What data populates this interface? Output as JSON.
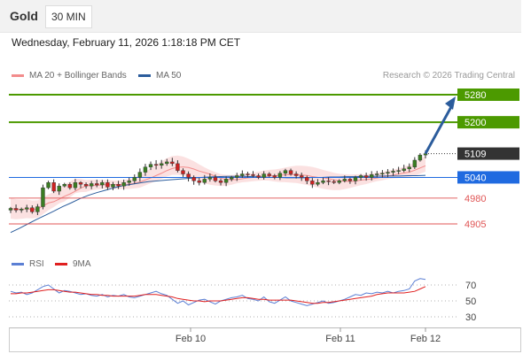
{
  "header": {
    "title": "Gold",
    "timeframe": "30 MIN"
  },
  "date": "Wednesday, February 11, 2026 1:18:18 PM CET",
  "copyright": "Research © 2026 Trading Central",
  "legend": [
    {
      "label": "MA 20 + Bollinger Bands",
      "color": "#f28c8c"
    },
    {
      "label": "MA 50",
      "color": "#2b5c9c"
    }
  ],
  "rsi_legend": [
    {
      "label": "RSI",
      "color": "#5b7fd4"
    },
    {
      "label": "9MA",
      "color": "#e02020"
    }
  ],
  "colors": {
    "resistance": "#4c9a00",
    "support": "#e05555",
    "pivot": "#1f6ae0",
    "price_box": "#333333",
    "arrow": "#2b5c9c",
    "up_candle": "#3a7d22",
    "down_candle": "#cc2222"
  },
  "chart_data": {
    "type": "candlestick",
    "instrument": "Gold",
    "timeframe": "30 MIN",
    "x_ticks": [
      "Feb 10",
      "Feb 11",
      "Feb 12"
    ],
    "y_range": [
      4870,
      5300
    ],
    "levels": [
      {
        "value": 5280,
        "label": "5280",
        "kind": "resistance"
      },
      {
        "value": 5200,
        "label": "5200",
        "kind": "resistance"
      },
      {
        "value": 5109,
        "label": "5109",
        "kind": "last_price"
      },
      {
        "value": 5040,
        "label": "5040",
        "kind": "pivot"
      },
      {
        "value": 4980,
        "label": "4980",
        "kind": "support"
      },
      {
        "value": 4905,
        "label": "4905",
        "kind": "support"
      }
    ],
    "close_series": [
      4950,
      4945,
      4948,
      4952,
      4940,
      4955,
      5010,
      5025,
      5000,
      5015,
      5020,
      5010,
      5025,
      5020,
      5015,
      5022,
      5018,
      5025,
      5012,
      5020,
      5015,
      5025,
      5030,
      5040,
      5055,
      5070,
      5078,
      5075,
      5080,
      5085,
      5080,
      5060,
      5050,
      5040,
      5030,
      5025,
      5035,
      5040,
      5030,
      5025,
      5035,
      5040,
      5045,
      5050,
      5048,
      5045,
      5040,
      5050,
      5045,
      5040,
      5052,
      5060,
      5050,
      5045,
      5040,
      5030,
      5020,
      5025,
      5030,
      5028,
      5025,
      5030,
      5035,
      5030,
      5040,
      5045,
      5040,
      5048,
      5050,
      5052,
      5055,
      5058,
      5060,
      5065,
      5070,
      5090,
      5105,
      5109
    ],
    "ma50_series": [
      4880,
      4892,
      4905,
      4918,
      4930,
      4942,
      4955,
      4966,
      4978,
      4988,
      4996,
      5003,
      5010,
      5016,
      5020,
      5024,
      5028,
      5030,
      5032,
      5034,
      5036,
      5038,
      5040,
      5041,
      5042,
      5043,
      5043,
      5043,
      5042,
      5041,
      5040,
      5040,
      5039,
      5039,
      5039,
      5040,
      5040,
      5041,
      5041,
      5042,
      5042,
      5043,
      5043,
      5044,
      5044,
      5044,
      5045,
      5045,
      5046
    ],
    "rsi": {
      "levels": [
        70,
        50,
        30
      ],
      "values": [
        62,
        60,
        61,
        58,
        60,
        64,
        68,
        70,
        65,
        60,
        63,
        62,
        60,
        58,
        59,
        57,
        56,
        58,
        55,
        57,
        56,
        58,
        55,
        54,
        56,
        58,
        60,
        62,
        59,
        57,
        52,
        47,
        50,
        45,
        48,
        51,
        52,
        49,
        46,
        50,
        52,
        54,
        55,
        57,
        53,
        52,
        50,
        55,
        49,
        47,
        51,
        55,
        50,
        48,
        46,
        44,
        46,
        48,
        50,
        47,
        48,
        50,
        52,
        55,
        58,
        57,
        60,
        59,
        61,
        60,
        62,
        60,
        62,
        63,
        65,
        75,
        78,
        77
      ],
      "ma9": [
        59,
        59,
        60,
        60,
        61,
        62,
        63,
        64,
        64,
        63,
        62,
        61,
        61,
        60,
        59,
        58,
        58,
        57,
        57,
        56,
        56,
        56,
        56,
        56,
        57,
        58,
        58,
        58,
        57,
        56,
        55,
        53,
        52,
        51,
        50,
        50,
        49,
        50,
        50,
        50,
        51,
        52,
        53,
        54,
        54,
        53,
        52,
        52,
        51,
        51,
        51,
        51,
        51,
        50,
        49,
        48,
        47,
        47,
        48,
        48,
        49,
        50,
        51,
        52,
        53,
        54,
        55,
        56,
        58,
        59,
        60,
        60,
        60,
        60,
        61,
        62,
        65,
        68
      ]
    }
  }
}
